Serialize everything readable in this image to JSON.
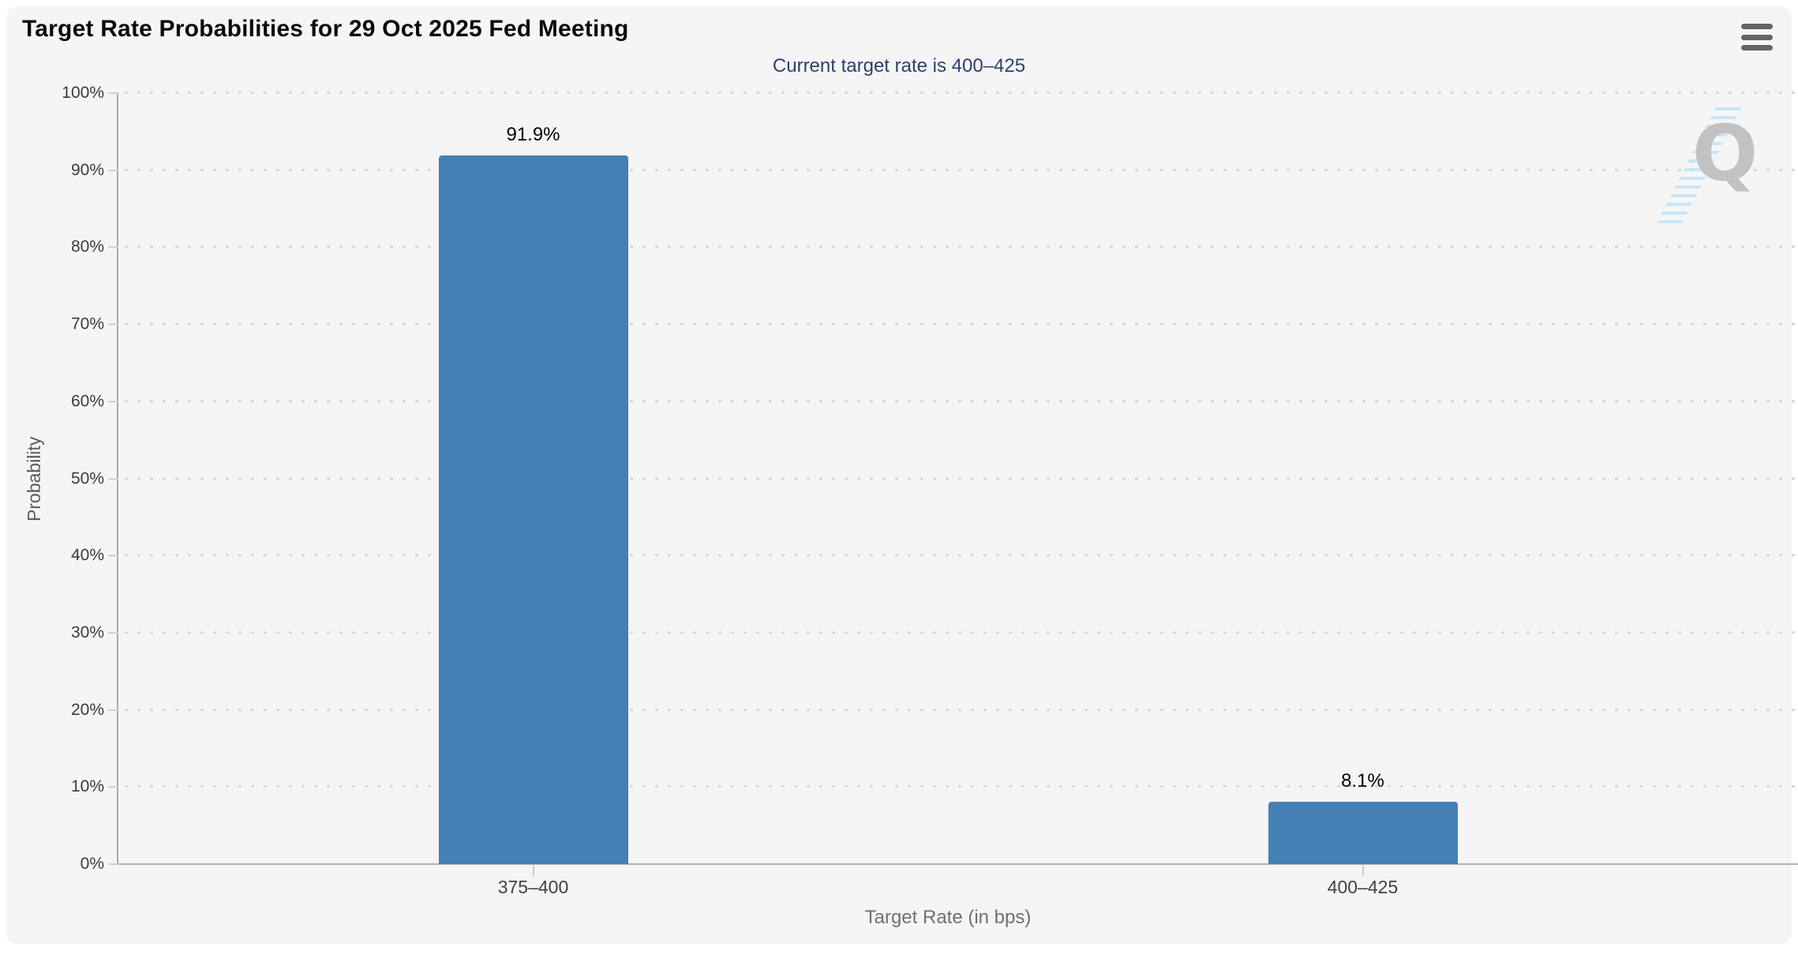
{
  "header": {
    "title": "Target Rate Probabilities for 29 Oct 2025 Fed Meeting"
  },
  "menu": {
    "icon": "hamburger-icon"
  },
  "chart_data": {
    "type": "bar",
    "title": "Target Rate Probabilities for 29 Oct 2025 Fed Meeting",
    "subtitle": "Current target rate is 400–425",
    "categories": [
      "375–400",
      "400–425"
    ],
    "values": [
      91.9,
      8.1
    ],
    "value_labels": [
      "91.9%",
      "8.1%"
    ],
    "xlabel": "Target Rate (in bps)",
    "ylabel": "Probability",
    "ylim": [
      0,
      100
    ],
    "ytick_step": 10,
    "ytick_suffix": "%",
    "grid": "dotted horizontal",
    "legend": false,
    "bar_color": "#4480b4",
    "subtitle_color": "#2d3f6e"
  },
  "watermark": {
    "letter": "Q"
  }
}
